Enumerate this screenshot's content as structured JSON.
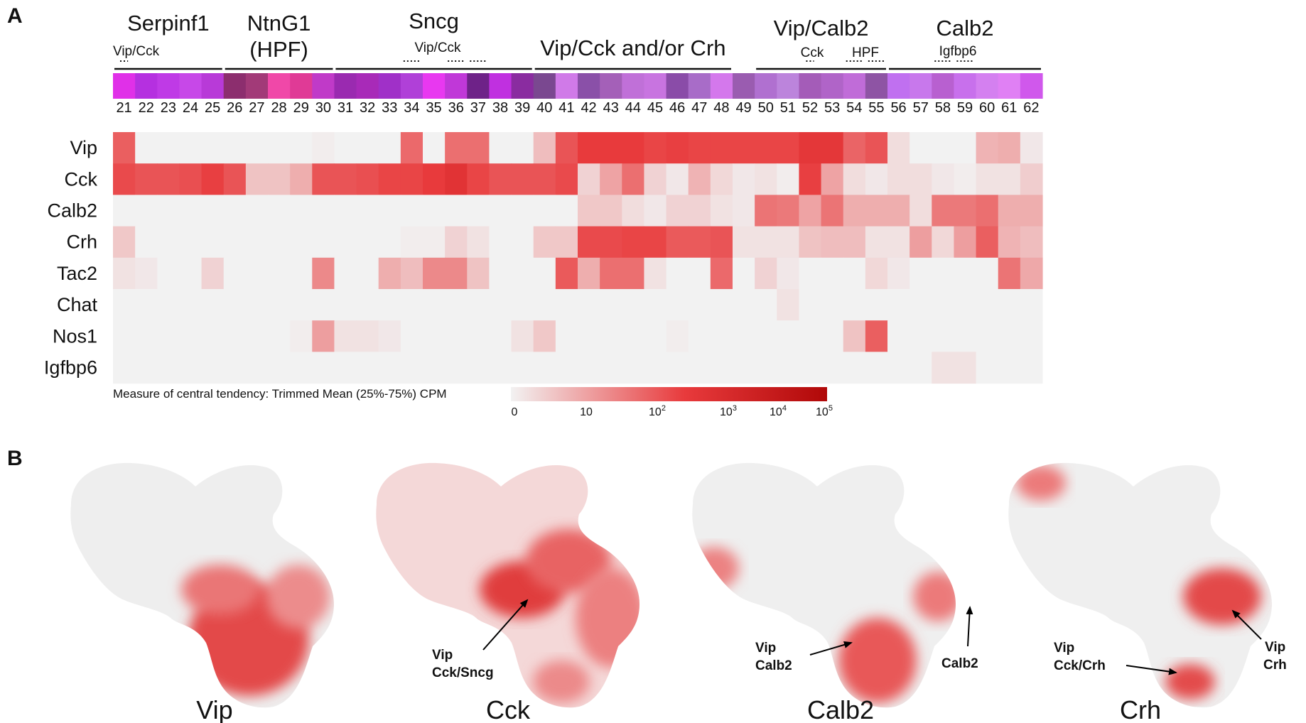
{
  "chart_data": [
    {
      "panel": "A",
      "type": "heatmap",
      "clusters": [
        "21",
        "22",
        "23",
        "24",
        "25",
        "26",
        "27",
        "28",
        "29",
        "30",
        "31",
        "32",
        "33",
        "34",
        "35",
        "36",
        "37",
        "38",
        "39",
        "40",
        "41",
        "42",
        "43",
        "44",
        "45",
        "46",
        "47",
        "48",
        "49",
        "50",
        "51",
        "52",
        "53",
        "54",
        "55",
        "56",
        "57",
        "58",
        "59",
        "60",
        "61",
        "62"
      ],
      "cluster_colors": [
        "#e030e8",
        "#b530e0",
        "#bf3ae6",
        "#c748e8",
        "#b83ad8",
        "#8c2e6e",
        "#a23a78",
        "#f048a8",
        "#e03a96",
        "#c03ac8",
        "#9a2ab0",
        "#a82ab8",
        "#a030c8",
        "#b040d8",
        "#e838f0",
        "#c038d8",
        "#6e2288",
        "#c030e0",
        "#8a2ca0",
        "#7a4890",
        "#d07ae8",
        "#8a50a8",
        "#a460b8",
        "#c070d8",
        "#c874e0",
        "#8a4ca8",
        "#a86cc8",
        "#d478ec",
        "#9a5cb0",
        "#b070d0",
        "#bc84dc",
        "#a45cb8",
        "#b064c8",
        "#c06cd8",
        "#8e54a4",
        "#c070f0",
        "#c878ec",
        "#b860d0",
        "#c870ec",
        "#d480f0",
        "#e080f4",
        "#d058ec"
      ],
      "groups": [
        {
          "label": "Serpinf1",
          "from": "21",
          "to": "25"
        },
        {
          "label": "NtnG1",
          "label2": "(HPF)",
          "from": "26",
          "to": "30"
        },
        {
          "label": "Sncg",
          "from": "31",
          "to": "39"
        },
        {
          "label": "Vip/Cck and/or Crh",
          "from": "40",
          "to": "48"
        },
        {
          "label": "Vip/Calb2",
          "from": "50",
          "to": "55"
        },
        {
          "label": "Calb2",
          "from": "56",
          "to": "62"
        }
      ],
      "sublabels": [
        {
          "label": "Vip/Cck",
          "clusters": [
            "21"
          ]
        },
        {
          "label": "Vip/Cck",
          "clusters": [
            "34",
            "36",
            "37"
          ]
        },
        {
          "label": "Cck",
          "clusters": [
            "52"
          ]
        },
        {
          "label": "HPF",
          "clusters": [
            "54",
            "55"
          ]
        },
        {
          "label": "Igfbp6",
          "clusters": [
            "58",
            "59"
          ]
        }
      ],
      "genes": [
        "Vip",
        "Cck",
        "Calb2",
        "Crh",
        "Tac2",
        "Chat",
        "Nos1",
        "Igfbp6"
      ],
      "values_log10": [
        [
          2.8,
          0,
          0,
          0,
          0,
          0,
          0,
          0,
          0,
          0.1,
          0,
          0,
          0,
          2.6,
          0,
          2.5,
          2.5,
          0,
          0,
          1.0,
          3.0,
          3.5,
          3.5,
          3.5,
          3.3,
          3.4,
          3.3,
          3.3,
          3.3,
          3.3,
          3.3,
          3.6,
          3.6,
          2.7,
          3.0,
          0.4,
          0,
          0,
          0,
          1.2,
          1.3,
          0.2
        ],
        [
          3.2,
          3.0,
          3.0,
          3.1,
          3.4,
          3.0,
          0.9,
          0.9,
          1.3,
          3.0,
          3.0,
          3.1,
          3.3,
          3.3,
          3.5,
          3.7,
          3.3,
          3.0,
          3.0,
          3.0,
          3.2,
          0.6,
          1.5,
          2.5,
          0.6,
          0.2,
          1.2,
          0.5,
          0.2,
          0.3,
          0.1,
          3.4,
          1.5,
          0.4,
          0.2,
          0.4,
          0.4,
          0.2,
          0.1,
          0.3,
          0.3,
          0.7
        ],
        [
          0,
          0,
          0,
          0,
          0,
          0,
          0,
          0,
          0,
          0,
          0,
          0,
          0,
          0,
          0,
          0,
          0,
          0,
          0,
          0,
          0,
          0.8,
          0.8,
          0.4,
          0.2,
          0.6,
          0.6,
          0.3,
          0.2,
          2.4,
          2.3,
          1.5,
          2.4,
          1.3,
          1.3,
          1.3,
          0.4,
          2.3,
          2.3,
          2.5,
          1.3,
          1.3
        ],
        [
          0.8,
          0,
          0,
          0,
          0,
          0,
          0,
          0,
          0,
          0,
          0,
          0,
          0,
          0.1,
          0.1,
          0.6,
          0.3,
          0,
          0,
          0.8,
          0.8,
          3.2,
          3.2,
          3.3,
          3.3,
          2.9,
          2.9,
          3.0,
          0.3,
          0.3,
          0.3,
          0.9,
          1.0,
          1.0,
          0.3,
          0.3,
          1.6,
          0.5,
          1.6,
          2.8,
          1.2,
          1.0
        ],
        [
          0.3,
          0.2,
          0,
          0,
          0.6,
          0,
          0,
          0,
          0,
          2.0,
          0,
          0,
          1.3,
          1.0,
          2.0,
          2.0,
          0.9,
          0,
          0,
          0,
          2.9,
          1.3,
          2.5,
          2.5,
          0.3,
          0,
          0,
          2.6,
          0,
          0.6,
          0.2,
          0,
          0,
          0,
          0.5,
          0.2,
          0,
          0,
          0,
          0,
          2.4,
          1.4
        ],
        [
          0,
          0,
          0,
          0,
          0,
          0,
          0,
          0,
          0,
          0,
          0,
          0,
          0,
          0,
          0,
          0,
          0,
          0,
          0,
          0,
          0,
          0,
          0,
          0,
          0,
          0,
          0,
          0,
          0,
          0,
          0.3,
          0,
          0,
          0,
          0,
          0,
          0,
          0,
          0,
          0,
          0,
          0
        ],
        [
          0,
          0,
          0,
          0,
          0,
          0,
          0,
          0,
          0.1,
          1.6,
          0.3,
          0.3,
          0.2,
          0,
          0,
          0,
          0,
          0,
          0.3,
          0.8,
          0,
          0,
          0,
          0,
          0,
          0.1,
          0,
          0,
          0,
          0,
          0,
          0,
          0,
          0.9,
          2.8,
          0,
          0,
          0,
          0,
          0,
          0,
          0
        ],
        [
          0,
          0,
          0,
          0,
          0,
          0,
          0,
          0,
          0,
          0,
          0,
          0,
          0,
          0,
          0,
          0,
          0,
          0,
          0,
          0,
          0,
          0,
          0,
          0,
          0,
          0,
          0,
          0,
          0,
          0,
          0,
          0,
          0,
          0,
          0,
          0,
          0,
          0.3,
          0.3,
          0,
          0,
          0
        ]
      ],
      "legend": {
        "title": "Measure of central tendency: Trimmed Mean (25%-75%) CPM",
        "ticks": [
          {
            "base": "0",
            "exp": ""
          },
          {
            "base": "10",
            "exp": ""
          },
          {
            "base": "10",
            "exp": "2"
          },
          {
            "base": "10",
            "exp": "3"
          },
          {
            "base": "10",
            "exp": "4"
          },
          {
            "base": "10",
            "exp": "5"
          }
        ],
        "color_low": "#f2f2f2",
        "color_mid": "#e83a3c",
        "color_high": "#b00808",
        "max_log10": 5
      }
    },
    {
      "panel": "B",
      "type": "scatter",
      "description": "UMAP feature plots",
      "plots": [
        {
          "title": "Vip",
          "annotations": []
        },
        {
          "title": "Cck",
          "annotations": [
            {
              "lines": [
                "Vip",
                "Cck/Sncg"
              ]
            }
          ]
        },
        {
          "title": "Calb2",
          "annotations": [
            {
              "lines": [
                "Vip",
                "Calb2"
              ]
            },
            {
              "lines": [
                "Calb2"
              ]
            }
          ]
        },
        {
          "title": "Crh",
          "annotations": [
            {
              "lines": [
                "Vip",
                "Cck/Crh"
              ]
            },
            {
              "lines": [
                "Vip",
                "Crh"
              ]
            }
          ]
        }
      ]
    }
  ],
  "panel_letters": [
    "A",
    "B"
  ]
}
